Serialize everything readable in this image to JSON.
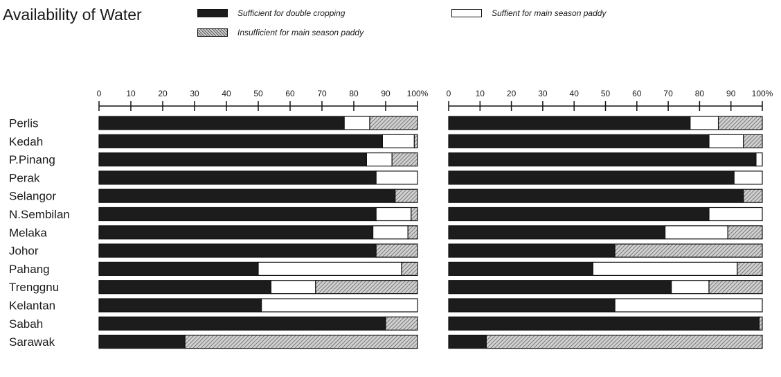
{
  "title": "Availability of Water",
  "legend": [
    {
      "label": "Sufficient for double cropping",
      "pattern": "dark"
    },
    {
      "label": "Insufficient for main season paddy",
      "pattern": "hatch"
    },
    {
      "label": "Suffient for main season paddy",
      "pattern": "white"
    }
  ],
  "colors": {
    "dark": "#1c1c1c",
    "white": "#ffffff",
    "hatch": "#9a9a9a"
  },
  "chart_data": [
    {
      "type": "bar",
      "orientation": "horizontal",
      "stacked": true,
      "categories": [
        "Perlis",
        "Kedah",
        "P.Pinang",
        "Perak",
        "Selangor",
        "N.Sembilan",
        "Melaka",
        "Johor",
        "Pahang",
        "Trenggnu",
        "Kelantan",
        "Sabah",
        "Sarawak"
      ],
      "xlim": [
        0,
        100
      ],
      "x_ticks": [
        "0",
        "10",
        "20",
        "30",
        "40",
        "50",
        "60",
        "70",
        "80",
        "90",
        "100%"
      ],
      "series": [
        {
          "name": "Sufficient for double cropping",
          "values": [
            77,
            89,
            84,
            87,
            93,
            87,
            86,
            87,
            50,
            54,
            51,
            90,
            27
          ]
        },
        {
          "name": "Suffient for main season paddy",
          "values": [
            8,
            10,
            8,
            13,
            0,
            11,
            11,
            0,
            45,
            14,
            49,
            0,
            0
          ]
        },
        {
          "name": "Insufficient for main season paddy",
          "values": [
            15,
            1,
            8,
            0,
            7,
            2,
            3,
            13,
            5,
            32,
            0,
            10,
            73
          ]
        }
      ]
    },
    {
      "type": "bar",
      "orientation": "horizontal",
      "stacked": true,
      "categories": [
        "Perlis",
        "Kedah",
        "P.Pinang",
        "Perak",
        "Selangor",
        "N.Sembilan",
        "Melaka",
        "Johor",
        "Pahang",
        "Trenggnu",
        "Kelantan",
        "Sabah",
        "Sarawak"
      ],
      "xlim": [
        0,
        100
      ],
      "x_ticks": [
        "0",
        "10",
        "20",
        "30",
        "40",
        "50",
        "60",
        "70",
        "80",
        "90",
        "100%"
      ],
      "series": [
        {
          "name": "Sufficient for double cropping",
          "values": [
            77,
            83,
            98,
            91,
            94,
            83,
            69,
            53,
            46,
            71,
            53,
            99,
            12
          ]
        },
        {
          "name": "Suffient for main season paddy",
          "values": [
            9,
            11,
            2,
            9,
            0,
            17,
            20,
            0,
            46,
            12,
            47,
            0,
            0
          ]
        },
        {
          "name": "Insufficient for main season paddy",
          "values": [
            14,
            6,
            0,
            0,
            6,
            0,
            11,
            47,
            8,
            17,
            0,
            1,
            88
          ]
        }
      ]
    }
  ]
}
